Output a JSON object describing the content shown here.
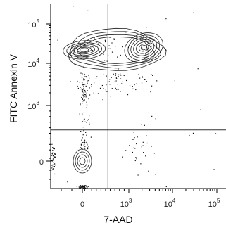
{
  "chart_data": {
    "type": "scatter",
    "title": "",
    "xlabel": "7-AAD",
    "ylabel": "FITC Annexin V",
    "x_scale": "biexponential",
    "y_scale": "biexponential",
    "xlim": [
      -150,
      100000
    ],
    "ylim": [
      -150,
      100000
    ],
    "x_ticks": [
      {
        "value": 0,
        "base": "0",
        "exp": ""
      },
      {
        "value": 1000,
        "base": "10",
        "exp": "3"
      },
      {
        "value": 10000,
        "base": "10",
        "exp": "4"
      },
      {
        "value": 100000,
        "base": "10",
        "exp": "5"
      }
    ],
    "y_ticks": [
      {
        "value": 0,
        "base": "0",
        "exp": ""
      },
      {
        "value": 1000,
        "base": "10",
        "exp": "3"
      },
      {
        "value": 10000,
        "base": "10",
        "exp": "4"
      },
      {
        "value": 100000,
        "base": "10",
        "exp": "5"
      }
    ],
    "quadrant_gates": {
      "x": 550,
      "y": 560
    },
    "populations": [
      {
        "center": [
          0,
          0
        ],
        "spread": [
          45,
          35
        ]
      },
      {
        "center": [
          40,
          22000
        ],
        "spread": [
          0.35,
          0.16
        ]
      },
      {
        "center": [
          2200,
          25000
        ],
        "spread": [
          0.25,
          0.18
        ]
      }
    ],
    "grid": false,
    "legend": "none"
  }
}
